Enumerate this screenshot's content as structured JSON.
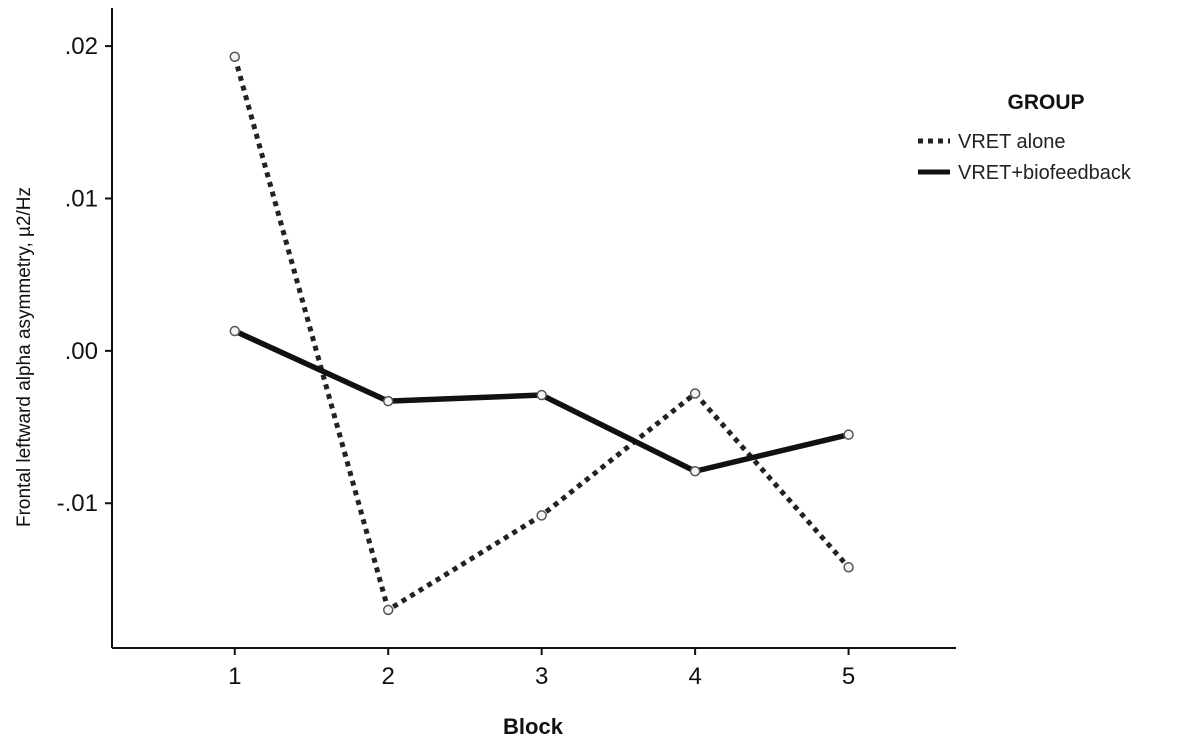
{
  "chart_data": {
    "type": "line",
    "x": [
      1,
      2,
      3,
      4,
      5
    ],
    "xlabel": "Block",
    "ylabel": "Frontal leftward alpha asymmetry, µ2/Hz",
    "xlim": [
      0.2,
      5.7
    ],
    "ylim": [
      -0.0195,
      0.0225
    ],
    "y_ticks": [
      0.02,
      0.01,
      0.0,
      -0.01
    ],
    "y_tick_labels": [
      ".02",
      ".01",
      ".00",
      "-.01"
    ],
    "x_tick_labels": [
      "1",
      "2",
      "3",
      "4",
      "5"
    ],
    "grid": false,
    "legend": {
      "title": "GROUP",
      "position": "right"
    },
    "series": [
      {
        "name": "VRET alone",
        "style": "dotted",
        "color": "#222222",
        "values": [
          0.0193,
          -0.017,
          -0.0108,
          -0.0028,
          -0.0142
        ]
      },
      {
        "name": "VRET+biofeedback",
        "style": "solid",
        "color": "#111111",
        "values": [
          0.0013,
          -0.0033,
          -0.0029,
          -0.0079,
          -0.0055
        ]
      }
    ]
  }
}
